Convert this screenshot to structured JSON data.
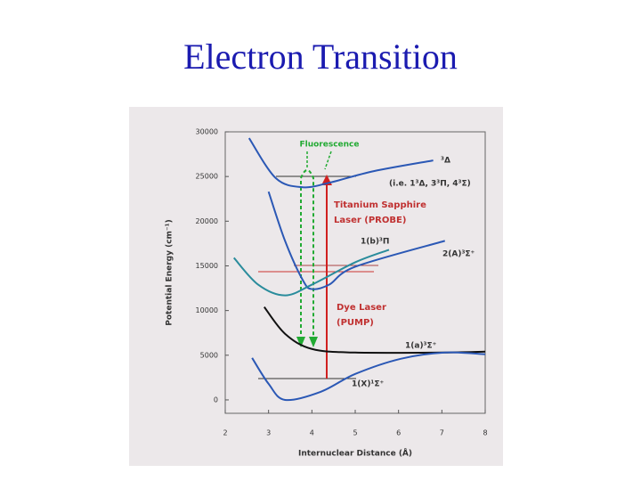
{
  "chart_data": {
    "type": "line",
    "title": "Electron Transition",
    "xlabel": "Internuclear Distance (Å)",
    "ylabel": "Potential Energy (cm⁻¹)",
    "xlim": [
      2,
      8
    ],
    "xticks": [
      2,
      3,
      4,
      5,
      6,
      7,
      8
    ],
    "ylim": [
      -1500,
      30000
    ],
    "yticks": [
      0,
      5000,
      10000,
      15000,
      20000,
      25000,
      30000
    ],
    "series": [
      {
        "name": "³Δ",
        "color": "#2b58b5",
        "x": [
          2.55,
          3.17,
          3.79,
          4.4,
          5.43,
          6.8
        ],
        "values": [
          29300,
          24800,
          23800,
          24300,
          25600,
          26800
        ]
      },
      {
        "name": "1(b)³Π",
        "color": "#2b58b5",
        "x": [
          3.0,
          3.38,
          3.79,
          4.0,
          4.4,
          5.0,
          7.07
        ],
        "values": [
          23300,
          17800,
          13400,
          12400,
          12900,
          14900,
          17800
        ]
      },
      {
        "name": "2(A)³Σ⁺",
        "color": "#2a8c9c",
        "x": [
          2.2,
          2.76,
          3.38,
          4.0,
          5.0,
          5.78
        ],
        "values": [
          15900,
          12900,
          11700,
          12900,
          15400,
          16800
        ]
      },
      {
        "name": "1(a)³Σ⁺",
        "color": "#111111",
        "x": [
          2.9,
          3.38,
          4.0,
          5.0,
          7.0,
          8.0
        ],
        "values": [
          10400,
          7400,
          5700,
          5300,
          5300,
          5400
        ]
      },
      {
        "name": "1(X)¹Σ⁺",
        "color": "#2b58b5",
        "x": [
          2.62,
          3.0,
          3.38,
          4.2,
          5.0,
          6.05,
          7.07,
          8.0
        ],
        "values": [
          4700,
          1800,
          0,
          900,
          2900,
          4600,
          5300,
          5100
        ]
      }
    ],
    "annotations": [
      "Fluorescence",
      "(i.e. 1³Δ, 3³Π, 4³Σ)",
      "Titanium Sapphire",
      "Laser (PROBE)",
      "Dye Laser",
      "(PUMP)"
    ]
  }
}
